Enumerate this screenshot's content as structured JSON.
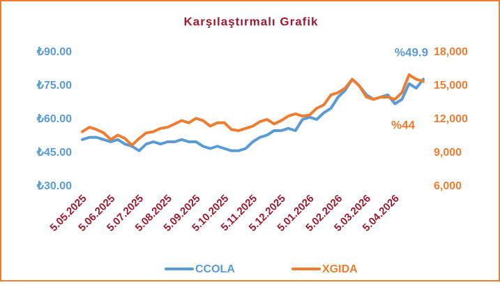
{
  "chart_data": {
    "type": "line",
    "title": "Karşılaştırmalı Grafik",
    "categories": [
      "5.05.2025",
      null,
      null,
      null,
      "5.06.2025",
      null,
      null,
      null,
      "5.07.2025",
      null,
      null,
      null,
      "5.08.2025",
      null,
      null,
      null,
      "5.09.2025",
      null,
      null,
      null,
      "5.10.2025",
      null,
      null,
      null,
      "5.11.2025",
      null,
      null,
      null,
      "5.12.2025",
      null,
      null,
      null,
      "5.01.2026",
      null,
      null,
      null,
      "5.02.2026",
      null,
      null,
      null,
      "5.03.2026",
      null,
      null,
      null,
      "5.04.2026",
      null,
      null,
      null,
      null
    ],
    "series": [
      {
        "name": "CCOLA",
        "color": "#5b9bd5",
        "axis": "y",
        "values": [
          51,
          52,
          52,
          51,
          50,
          51,
          49,
          48,
          46,
          49,
          50,
          49,
          50,
          50,
          51,
          50,
          50,
          48,
          47,
          48,
          47,
          46,
          46,
          47,
          50,
          52,
          53,
          55,
          55,
          56,
          55,
          60,
          61,
          60,
          63,
          65,
          70,
          73,
          78,
          75,
          71,
          69,
          70,
          71,
          67,
          69,
          76,
          74,
          78
        ]
      },
      {
        "name": "XGIDA",
        "color": "#ed7d31",
        "axis": "y2",
        "values": [
          10900,
          11300,
          11100,
          10800,
          10200,
          10600,
          10300,
          9700,
          10300,
          10800,
          10900,
          11200,
          11300,
          11600,
          11900,
          11700,
          12100,
          11900,
          11400,
          11700,
          11700,
          11100,
          11000,
          11200,
          11400,
          11800,
          12000,
          11600,
          11900,
          12300,
          12500,
          12300,
          12400,
          13000,
          13300,
          14200,
          14400,
          14800,
          15600,
          15000,
          14000,
          13800,
          14000,
          14000,
          13800,
          14400,
          16000,
          15600,
          15400
        ]
      }
    ],
    "ylim": [
      30,
      90
    ],
    "yticks": [
      {
        "value": 30,
        "label": "₺30.00"
      },
      {
        "value": 45,
        "label": "₺45.00"
      },
      {
        "value": 60,
        "label": "₺60.00"
      },
      {
        "value": 75,
        "label": "₺75.00"
      },
      {
        "value": 90,
        "label": "₺90.00"
      }
    ],
    "y2lim": [
      6000,
      18000
    ],
    "y2ticks": [
      {
        "value": 6000,
        "label": "6,000"
      },
      {
        "value": 9000,
        "label": "9,000"
      },
      {
        "value": 12000,
        "label": "12,000"
      },
      {
        "value": 15000,
        "label": "15,000"
      },
      {
        "value": 18000,
        "label": "18,000"
      }
    ],
    "annotations": [
      "%49.9",
      "%44"
    ],
    "grid": false,
    "legend": "bottom"
  }
}
